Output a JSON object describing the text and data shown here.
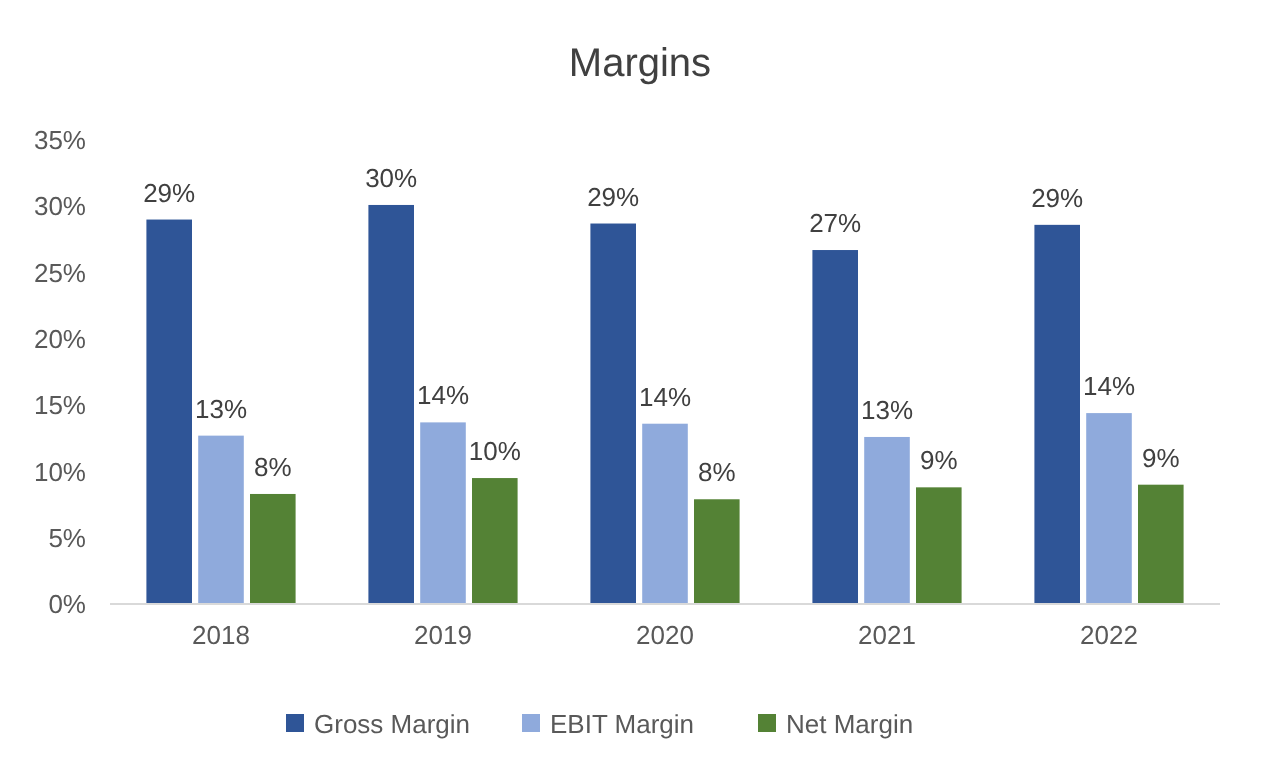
{
  "chart_data": {
    "type": "bar",
    "title": "Margins",
    "categories": [
      "2018",
      "2019",
      "2020",
      "2021",
      "2022"
    ],
    "series": [
      {
        "name": "Gross Margin",
        "color": "#2f5597",
        "values": [
          29.0,
          30.1,
          28.7,
          26.7,
          28.6
        ],
        "value_labels": [
          "29%",
          "30%",
          "29%",
          "27%",
          "29%"
        ]
      },
      {
        "name": "EBIT Margin",
        "color": "#8faadc",
        "values": [
          12.7,
          13.7,
          13.6,
          12.6,
          14.4
        ],
        "value_labels": [
          "13%",
          "14%",
          "14%",
          "13%",
          "14%"
        ]
      },
      {
        "name": "Net Margin",
        "color": "#548235",
        "values": [
          8.3,
          9.5,
          7.9,
          8.8,
          9.0
        ],
        "value_labels": [
          "8%",
          "10%",
          "8%",
          "9%",
          "9%"
        ]
      }
    ],
    "ylim": [
      0,
      35
    ],
    "yticks": [
      {
        "value": 0,
        "label": "0%"
      },
      {
        "value": 5,
        "label": "5%"
      },
      {
        "value": 10,
        "label": "10%"
      },
      {
        "value": 15,
        "label": "15%"
      },
      {
        "value": 20,
        "label": "20%"
      },
      {
        "value": 25,
        "label": "25%"
      },
      {
        "value": 30,
        "label": "30%"
      },
      {
        "value": 35,
        "label": "35%"
      }
    ],
    "legend": "bottom"
  }
}
